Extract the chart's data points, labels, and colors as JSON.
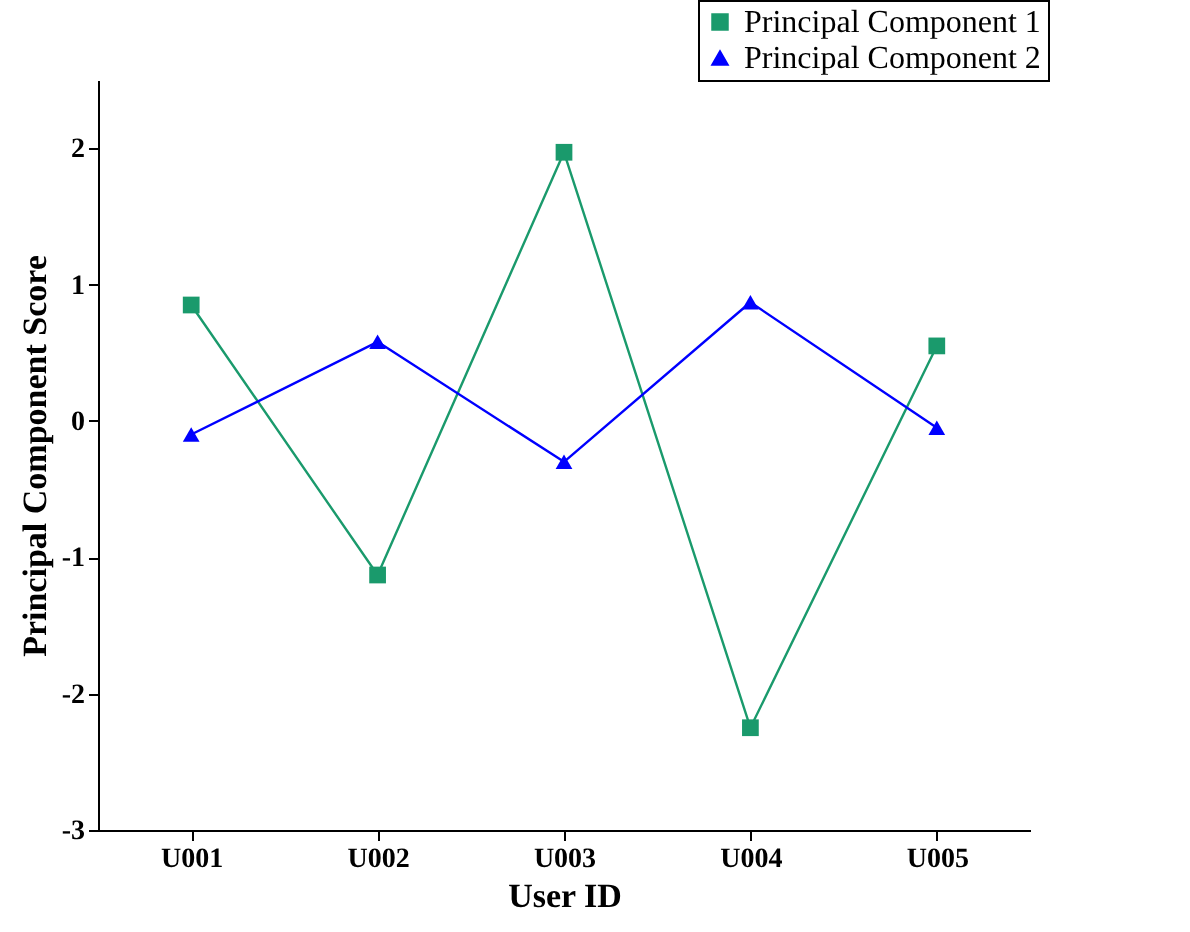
{
  "chart_data": {
    "type": "line",
    "xlabel": "User ID",
    "ylabel": "Principal Component Score",
    "categories": [
      "U001",
      "U002",
      "U003",
      "U004",
      "U005"
    ],
    "series": [
      {
        "name": "Principal Component 1",
        "color": "#1a9a6c",
        "marker": "square",
        "values": [
          0.85,
          -1.13,
          1.97,
          -2.25,
          0.55
        ]
      },
      {
        "name": "Principal Component 2",
        "color": "#0000ff",
        "marker": "triangle",
        "values": [
          -0.1,
          0.58,
          -0.3,
          0.87,
          -0.05
        ]
      }
    ],
    "ylim": [
      -3,
      2.5
    ],
    "yticks": [
      -3,
      -2,
      -1,
      0,
      1,
      2
    ],
    "legend": "top right",
    "grid": false,
    "line_style": "solid"
  }
}
